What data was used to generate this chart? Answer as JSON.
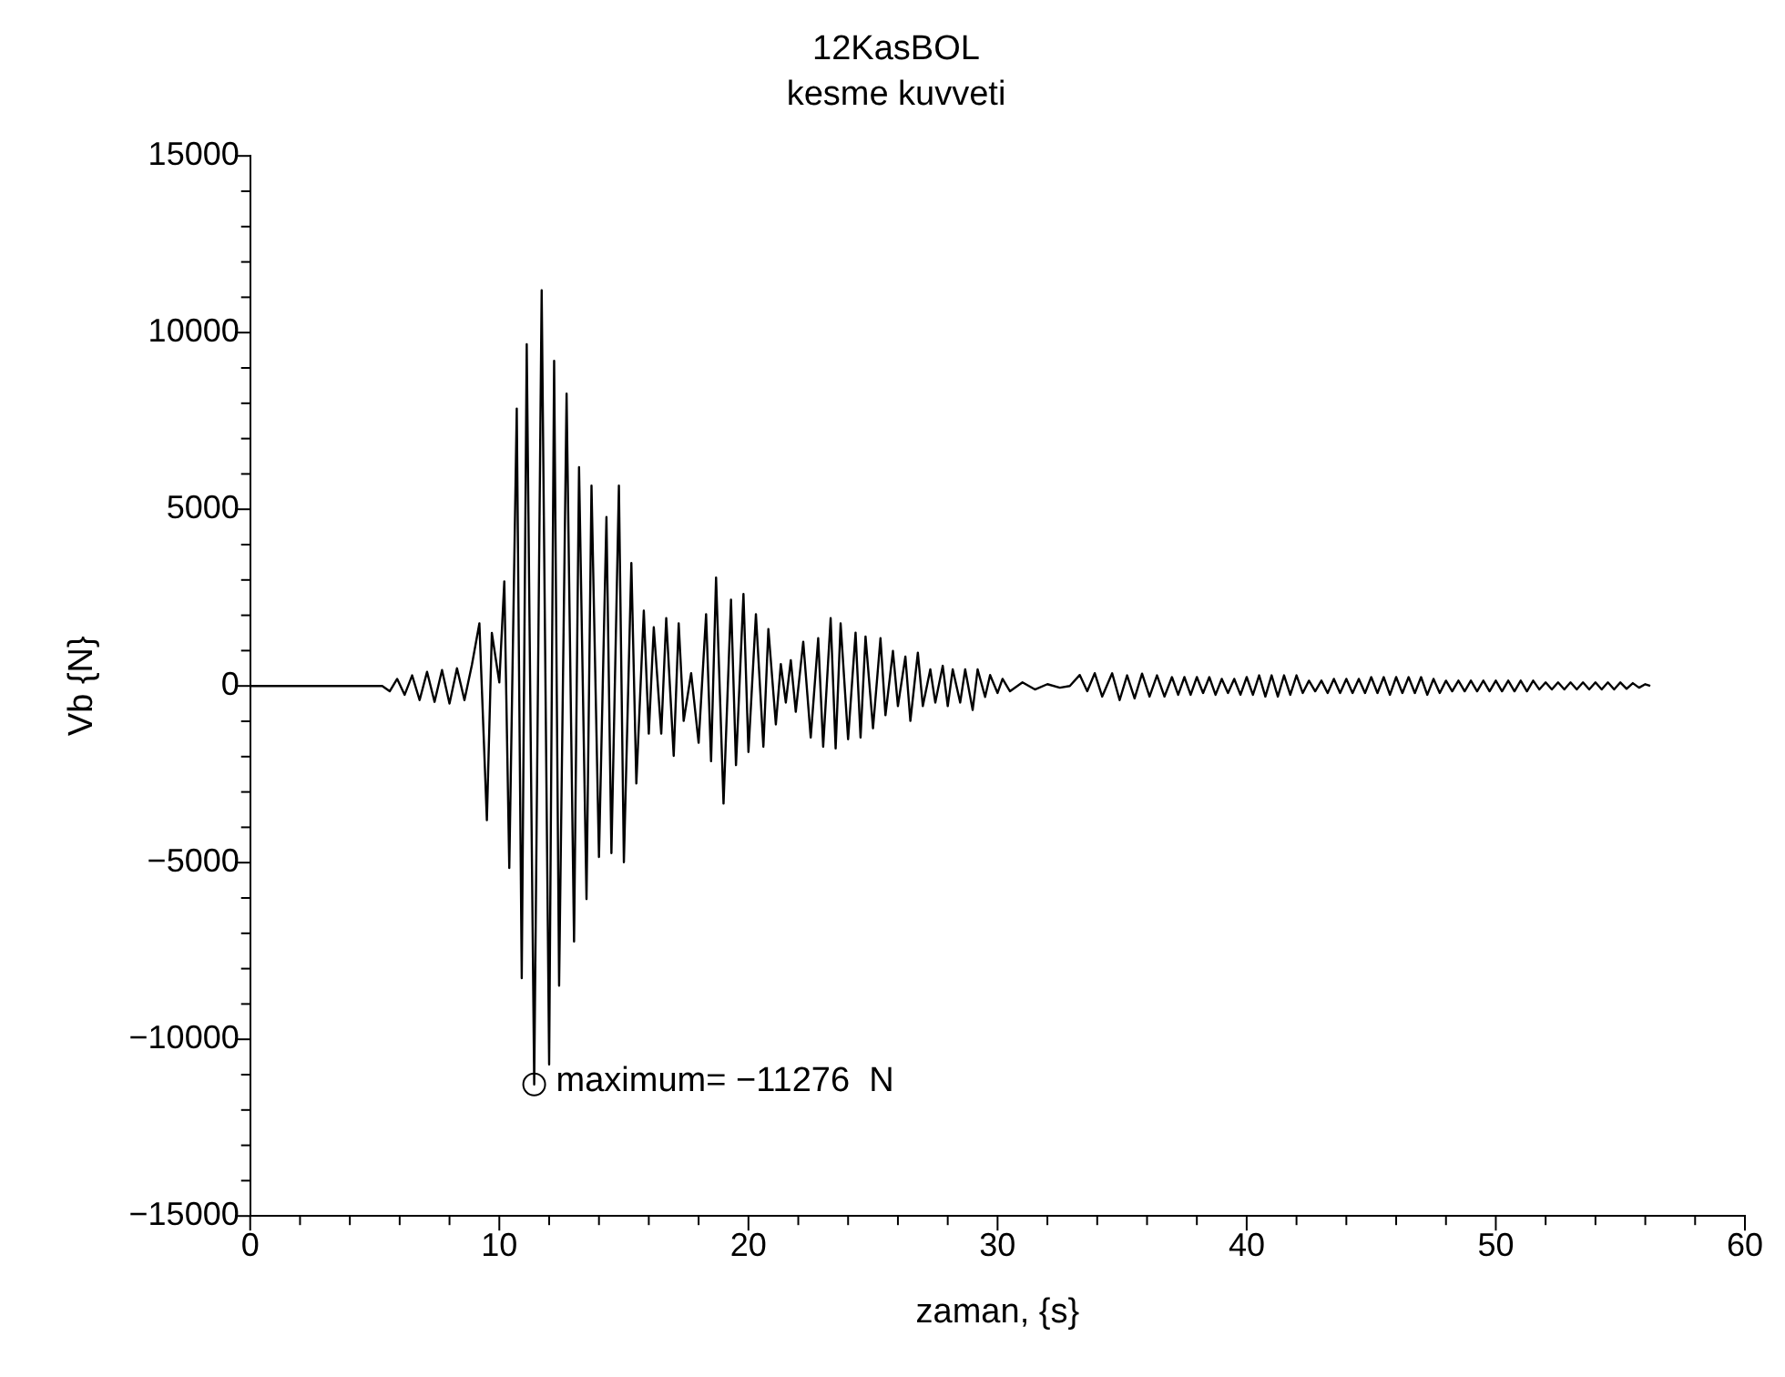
{
  "chart_data": {
    "type": "line",
    "title": "12KasBOL",
    "subtitle": "kesme kuvveti",
    "xlabel": "zaman, {s}",
    "ylabel": "Vb {N}",
    "xlim": [
      0,
      60
    ],
    "ylim": [
      -15000,
      15000
    ],
    "xticks": [
      0,
      {
        "value": 2,
        "label": null
      },
      {
        "value": 4,
        "label": null
      },
      {
        "value": 6,
        "label": null
      },
      {
        "value": 8,
        "label": null
      },
      10,
      {
        "value": 12,
        "label": null
      },
      {
        "value": 14,
        "label": null
      },
      {
        "value": 16,
        "label": null
      },
      {
        "value": 18,
        "label": null
      },
      20,
      {
        "value": 22,
        "label": null
      },
      {
        "value": 24,
        "label": null
      },
      {
        "value": 26,
        "label": null
      },
      {
        "value": 28,
        "label": null
      },
      30,
      {
        "value": 32,
        "label": null
      },
      {
        "value": 34,
        "label": null
      },
      {
        "value": 36,
        "label": null
      },
      {
        "value": 38,
        "label": null
      },
      40,
      {
        "value": 42,
        "label": null
      },
      {
        "value": 44,
        "label": null
      },
      {
        "value": 46,
        "label": null
      },
      {
        "value": 48,
        "label": null
      },
      50,
      {
        "value": 52,
        "label": null
      },
      {
        "value": 54,
        "label": null
      },
      {
        "value": 56,
        "label": null
      },
      {
        "value": 58,
        "label": null
      },
      60
    ],
    "yticks": [
      -15000,
      {
        "value": -14000,
        "label": null
      },
      {
        "value": -13000,
        "label": null
      },
      {
        "value": -12000,
        "label": null
      },
      {
        "value": -11000,
        "label": null
      },
      -10000,
      {
        "value": -9000,
        "label": null
      },
      {
        "value": -8000,
        "label": null
      },
      {
        "value": -7000,
        "label": null
      },
      {
        "value": -6000,
        "label": null
      },
      -5000,
      {
        "value": -4000,
        "label": null
      },
      {
        "value": -3000,
        "label": null
      },
      {
        "value": -2000,
        "label": null
      },
      {
        "value": -1000,
        "label": null
      },
      0,
      {
        "value": 1000,
        "label": null
      },
      {
        "value": 2000,
        "label": null
      },
      {
        "value": 3000,
        "label": null
      },
      {
        "value": 4000,
        "label": null
      },
      5000,
      {
        "value": 6000,
        "label": null
      },
      {
        "value": 7000,
        "label": null
      },
      {
        "value": 8000,
        "label": null
      },
      {
        "value": 9000,
        "label": null
      },
      10000,
      {
        "value": 11000,
        "label": null
      },
      {
        "value": 12000,
        "label": null
      },
      {
        "value": 13000,
        "label": null
      },
      {
        "value": 14000,
        "label": null
      },
      15000
    ],
    "grid": false,
    "legend": false,
    "marker": "none",
    "line_style": "solid",
    "annotations": [
      {
        "text": "maximum= −11276  N",
        "x": 11.4,
        "y": -11276
      }
    ],
    "series": [
      {
        "color": "#000000",
        "x": [
          0,
          5.3,
          5.6,
          5.9,
          6.2,
          6.5,
          6.8,
          7.1,
          7.4,
          7.7,
          8.0,
          8.3,
          8.6,
          8.9,
          9.2,
          9.5,
          9.7,
          10.0,
          10.2,
          10.4,
          10.7,
          10.9,
          11.1,
          11.4,
          11.7,
          12.0,
          12.2,
          12.4,
          12.7,
          13.0,
          13.2,
          13.5,
          13.7,
          14.0,
          14.3,
          14.5,
          14.8,
          15.0,
          15.3,
          15.5,
          15.8,
          16.0,
          16.2,
          16.5,
          16.7,
          17.0,
          17.2,
          17.4,
          17.7,
          18.0,
          18.3,
          18.5,
          18.7,
          19.0,
          19.3,
          19.5,
          19.8,
          20.0,
          20.3,
          20.6,
          20.8,
          21.1,
          21.3,
          21.5,
          21.7,
          21.9,
          22.2,
          22.5,
          22.8,
          23.0,
          23.3,
          23.5,
          23.7,
          24.0,
          24.3,
          24.5,
          24.7,
          25.0,
          25.3,
          25.5,
          25.8,
          26.0,
          26.3,
          26.5,
          26.8,
          27.0,
          27.3,
          27.5,
          27.8,
          28.0,
          28.2,
          28.5,
          28.7,
          29.0,
          29.2,
          29.5,
          29.7,
          30.0,
          30.2,
          30.5,
          31.0,
          31.5,
          32.0,
          32.5,
          32.9,
          33.3,
          33.6,
          33.9,
          34.2,
          34.6,
          34.9,
          35.2,
          35.5,
          35.8,
          36.1,
          36.4,
          36.7,
          37.0,
          37.25,
          37.5,
          37.75,
          38.0,
          38.25,
          38.5,
          38.75,
          39.0,
          39.25,
          39.5,
          39.75,
          40.0,
          40.25,
          40.5,
          40.75,
          41.0,
          41.25,
          41.5,
          41.75,
          42.0,
          42.25,
          42.5,
          42.75,
          43.0,
          43.25,
          43.5,
          43.75,
          44.0,
          44.25,
          44.5,
          44.75,
          45.0,
          45.25,
          45.5,
          45.75,
          46.0,
          46.25,
          46.5,
          46.75,
          47.0,
          47.25,
          47.5,
          47.75,
          48.0,
          48.25,
          48.5,
          48.75,
          49.0,
          49.25,
          49.5,
          49.75,
          50.0,
          50.25,
          50.5,
          50.75,
          51.0,
          51.25,
          51.5,
          51.75,
          52.0,
          52.25,
          52.5,
          52.75,
          53.0,
          53.25,
          53.5,
          53.75,
          54.0,
          54.25,
          54.5,
          54.75,
          55.0,
          55.25,
          55.5,
          55.75,
          56.0,
          56.2
        ],
        "values": [
          0,
          0,
          -150,
          200,
          -250,
          300,
          -400,
          400,
          -450,
          450,
          -500,
          500,
          -400,
          600,
          1770,
          -3800,
          1500,
          100,
          2960,
          -5150,
          7850,
          -8270,
          9670,
          -11276,
          11200,
          -10710,
          9200,
          -8480,
          8270,
          -7230,
          6190,
          -6030,
          5670,
          -4840,
          4780,
          -4730,
          5670,
          -4990,
          3480,
          -2760,
          2130,
          -1350,
          1660,
          -1350,
          1920,
          -1980,
          1770,
          -990,
          360,
          -1610,
          2030,
          -2130,
          3070,
          -3330,
          2440,
          -2240,
          2600,
          -1870,
          2030,
          -1720,
          1610,
          -1090,
          620,
          -470,
          730,
          -730,
          1250,
          -1460,
          1350,
          -1720,
          1920,
          -1770,
          1770,
          -1510,
          1510,
          -1460,
          1400,
          -1200,
          1350,
          -830,
          990,
          -570,
          830,
          -990,
          940,
          -570,
          470,
          -470,
          570,
          -570,
          470,
          -470,
          470,
          -680,
          470,
          -310,
          310,
          -200,
          200,
          -150,
          100,
          -100,
          50,
          -50,
          0,
          310,
          -150,
          360,
          -300,
          360,
          -400,
          300,
          -350,
          350,
          -300,
          300,
          -300,
          250,
          -250,
          250,
          -250,
          250,
          -200,
          250,
          -250,
          200,
          -200,
          200,
          -250,
          250,
          -250,
          300,
          -300,
          300,
          -300,
          300,
          -250,
          300,
          -200,
          150,
          -150,
          150,
          -200,
          200,
          -200,
          200,
          -200,
          200,
          -200,
          250,
          -200,
          250,
          -250,
          250,
          -200,
          250,
          -200,
          250,
          -250,
          200,
          -200,
          150,
          -150,
          150,
          -150,
          150,
          -150,
          150,
          -150,
          150,
          -150,
          150,
          -150,
          150,
          -150,
          150,
          -100,
          100,
          -100,
          100,
          -100,
          100,
          -100,
          100,
          -100,
          100,
          -100,
          100,
          -100,
          100,
          -80,
          80,
          -50,
          50,
          0
        ]
      }
    ]
  }
}
